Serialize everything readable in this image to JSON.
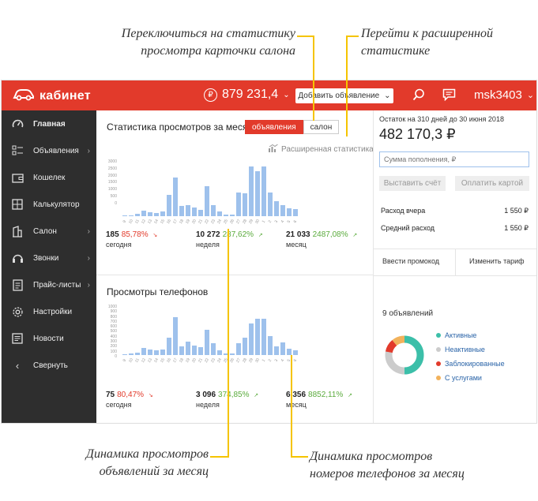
{
  "callouts": {
    "top_left_1": "Переключиться на статистику",
    "top_left_2": "просмотра карточки салона",
    "top_right_1": "Перейти к расширенной",
    "top_right_2": "статистике",
    "bottom_left_1": "Динамика просмотров",
    "bottom_left_2": "объявлений за месяц",
    "bottom_right_1": "Динамика просмотров",
    "bottom_right_2": "номеров телефонов за месяц"
  },
  "header": {
    "logo": "кабинет",
    "balance": "879 231,4",
    "add_button": "Добавить объявление",
    "user": "msk3403"
  },
  "sidebar": {
    "items": [
      {
        "label": "Главная",
        "icon": "speedometer-icon"
      },
      {
        "label": "Объявления",
        "icon": "list-icon"
      },
      {
        "label": "Кошелек",
        "icon": "wallet-icon"
      },
      {
        "label": "Калькулятор",
        "icon": "calculator-icon"
      },
      {
        "label": "Салон",
        "icon": "building-icon"
      },
      {
        "label": "Звонки",
        "icon": "phone-icon"
      },
      {
        "label": "Прайс-листы",
        "icon": "document-icon"
      },
      {
        "label": "Настройки",
        "icon": "gear-icon"
      },
      {
        "label": "Новости",
        "icon": "news-icon"
      },
      {
        "label": "Свернуть",
        "icon": "collapse-icon"
      }
    ]
  },
  "views_panel": {
    "title": "Статистика просмотров за месяц",
    "toggle_on": "объявления",
    "toggle_off": "салон",
    "extended_link": "Расширенная статистика",
    "y_ticks": [
      "3000",
      "2500",
      "2000",
      "1500",
      "1000",
      "500",
      "0"
    ],
    "stats": [
      {
        "num": "185",
        "pct": "85,78%",
        "trend": "down",
        "label": "сегодня"
      },
      {
        "num": "10 272",
        "pct": "287,62%",
        "trend": "up",
        "label": "неделя"
      },
      {
        "num": "21 033",
        "pct": "2487,08%",
        "trend": "up",
        "label": "месяц"
      }
    ]
  },
  "phones_panel": {
    "title": "Просмотры телефонов",
    "y_ticks": [
      "1000",
      "900",
      "800",
      "700",
      "600",
      "500",
      "400",
      "300",
      "200",
      "100",
      "0"
    ],
    "stats": [
      {
        "num": "75",
        "pct": "80,47%",
        "trend": "down",
        "label": "сегодня"
      },
      {
        "num": "3 096",
        "pct": "374,85%",
        "trend": "up",
        "label": "неделя"
      },
      {
        "num": "6 356",
        "pct": "8852,11%",
        "trend": "up",
        "label": "месяц"
      }
    ]
  },
  "x_ticks": [
    "9",
    "10",
    "11",
    "12",
    "13",
    "14",
    "15",
    "16",
    "17",
    "18",
    "19",
    "20",
    "21",
    "22",
    "23",
    "24",
    "25",
    "26",
    "27",
    "28",
    "29",
    "30",
    "1",
    "2",
    "3",
    "4",
    "5",
    "6"
  ],
  "chart_data": [
    {
      "type": "bar",
      "title": "Статистика просмотров за месяц",
      "categories": [
        "9",
        "10",
        "11",
        "12",
        "13",
        "14",
        "15",
        "16",
        "17",
        "18",
        "19",
        "20",
        "21",
        "22",
        "23",
        "24",
        "25",
        "26",
        "27",
        "28",
        "29",
        "30",
        "1",
        "2",
        "3",
        "4",
        "5",
        "6"
      ],
      "values": [
        30,
        50,
        150,
        320,
        220,
        180,
        250,
        1150,
        2100,
        550,
        580,
        480,
        350,
        1650,
        600,
        250,
        100,
        80,
        1300,
        1250,
        2700,
        2450,
        2700,
        1300,
        800,
        600,
        450,
        400
      ],
      "ylim": [
        0,
        3000
      ]
    },
    {
      "type": "bar",
      "title": "Просмотры телефонов",
      "categories": [
        "9",
        "10",
        "11",
        "12",
        "13",
        "14",
        "15",
        "16",
        "17",
        "18",
        "19",
        "20",
        "21",
        "22",
        "23",
        "24",
        "25",
        "26",
        "27",
        "28",
        "29",
        "30",
        "1",
        "2",
        "3",
        "4",
        "5",
        "6"
      ],
      "values": [
        20,
        30,
        50,
        150,
        110,
        100,
        120,
        350,
        780,
        180,
        280,
        200,
        160,
        520,
        240,
        90,
        40,
        30,
        250,
        350,
        650,
        750,
        750,
        380,
        180,
        260,
        130,
        100
      ],
      "ylim": [
        0,
        1000
      ]
    }
  ],
  "account": {
    "remaining": "Остаток на 310 дней до 30 июня 2018",
    "balance": "482 170,3 ₽",
    "input_placeholder": "Сумма пополнения, ₽",
    "invoice_button": "Выставить счёт",
    "card_button": "Оплатить картой",
    "rows": [
      {
        "label": "Расход вчера",
        "value": "1 550 ₽"
      },
      {
        "label": "Средний расход",
        "value": "1 550 ₽"
      }
    ],
    "promo": "Ввести промокод",
    "tariff": "Изменить тариф"
  },
  "ads": {
    "count": "9 объявлений",
    "legend": [
      {
        "label": "Активные",
        "color": "#3cbfa9"
      },
      {
        "label": "Неактивные",
        "color": "#cccccc"
      },
      {
        "label": "Заблокированные",
        "color": "#e23a2b"
      },
      {
        "label": "С услугами",
        "color": "#f2b25c"
      }
    ]
  }
}
